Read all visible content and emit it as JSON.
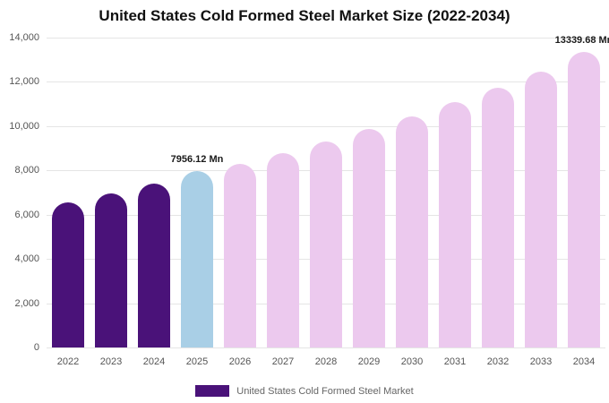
{
  "legend": {
    "label": "United States Cold Formed Steel Market",
    "swatch_color": "#4a1279"
  },
  "chart_data": {
    "type": "bar",
    "title": "United States Cold Formed Steel Market Size (2022-2034)",
    "xlabel": "",
    "ylabel": "",
    "unit": "Mn",
    "categories": [
      "2022",
      "2023",
      "2024",
      "2025",
      "2026",
      "2027",
      "2028",
      "2029",
      "2030",
      "2031",
      "2032",
      "2033",
      "2034"
    ],
    "values": [
      6550,
      6980,
      7400,
      7956.12,
      8300,
      8780,
      9300,
      9870,
      10450,
      11080,
      11750,
      12480,
      13339.68
    ],
    "bar_colors": [
      "#4a1279",
      "#4a1279",
      "#4a1279",
      "#a9cfe6",
      "#ecc9ee",
      "#ecc9ee",
      "#ecc9ee",
      "#ecc9ee",
      "#ecc9ee",
      "#ecc9ee",
      "#ecc9ee",
      "#ecc9ee",
      "#ecc9ee"
    ],
    "ylim": [
      0,
      14000
    ],
    "yticks": [
      0,
      2000,
      4000,
      6000,
      8000,
      10000,
      12000,
      14000
    ],
    "ytick_labels": [
      "0",
      "2,000",
      "4,000",
      "6,000",
      "8,000",
      "10,000",
      "12,000",
      "14,000"
    ],
    "annotations": [
      {
        "category": "2025",
        "text": "7956.12 Mn"
      },
      {
        "category": "2034",
        "text": "13339.68 Mn"
      }
    ],
    "grid": true,
    "legend_position": "bottom"
  }
}
